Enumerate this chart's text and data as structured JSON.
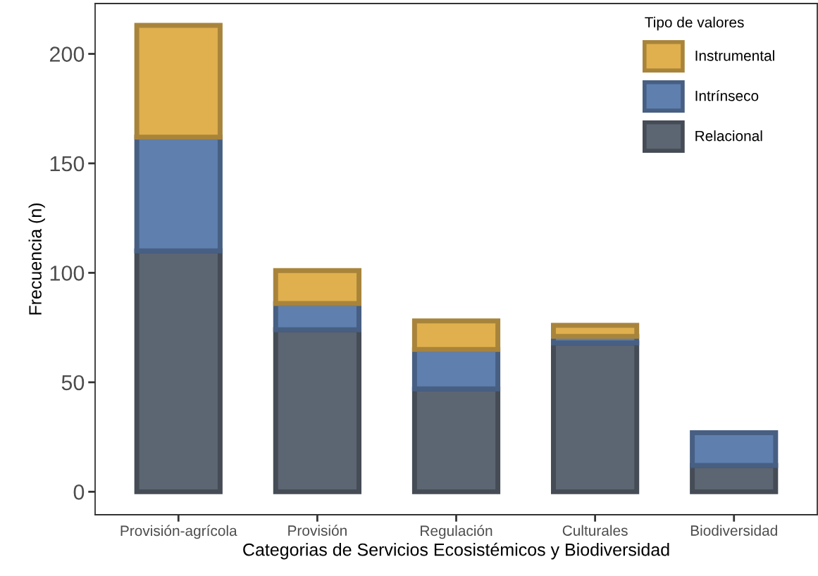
{
  "chart_data": {
    "type": "bar",
    "stacked": true,
    "xlabel": "Categorias de Servicios Ecosistémicos y Biodiversidad",
    "ylabel": "Frecuencia (n)",
    "legend_title": "Tipo de valores",
    "legend": "top right",
    "grid": false,
    "categories": [
      "Provisión-agrícola",
      "Provisión",
      "Regulación",
      "Culturales",
      "Biodiversidad"
    ],
    "series": [
      {
        "name": "Relacional",
        "color": "#5c6572",
        "values": [
          110,
          74,
          47,
          68,
          12
        ]
      },
      {
        "name": "Intrínseco",
        "color": "#5f7fae",
        "values": [
          52,
          12,
          18,
          3,
          15
        ]
      },
      {
        "name": "Instrumental",
        "color": "#e0b04e",
        "values": [
          51,
          15,
          13,
          5,
          null
        ]
      }
    ],
    "ylim": [
      -10.5,
      223
    ],
    "yticks": [
      0,
      50,
      100,
      150,
      200
    ]
  }
}
